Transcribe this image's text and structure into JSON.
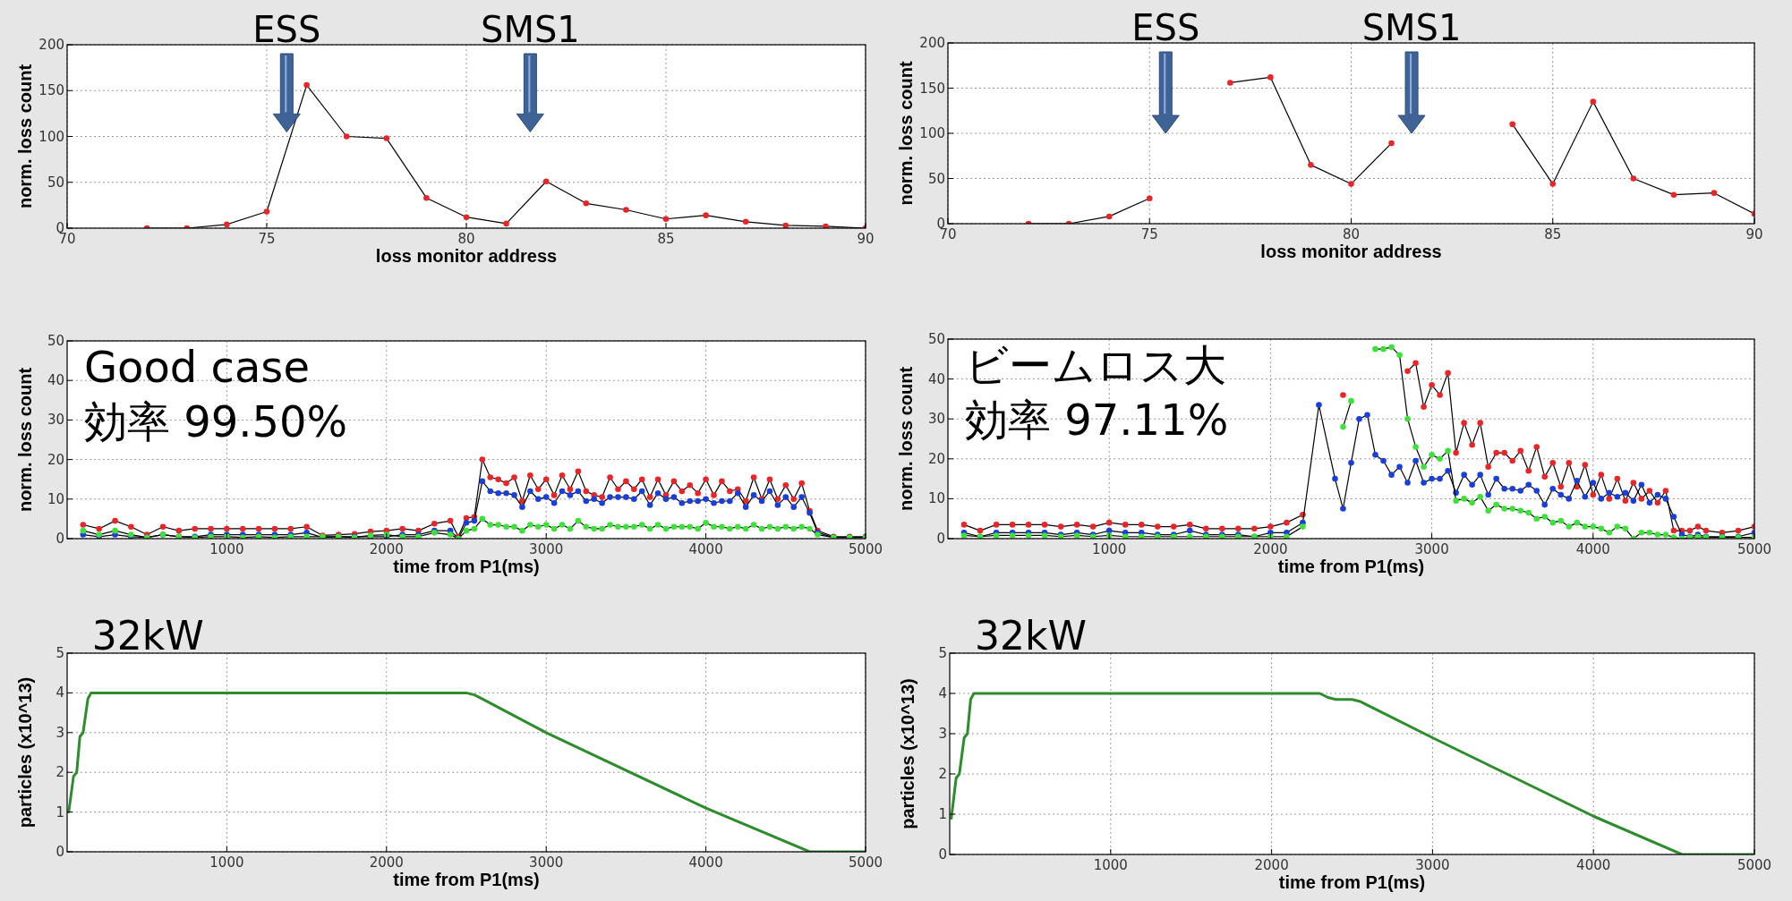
{
  "chart_data": [
    {
      "type": "line",
      "xlabel": "loss monitor address",
      "ylabel": "norm. loss count",
      "x": [
        72,
        73,
        74,
        75,
        76,
        77,
        78,
        79,
        80,
        81,
        82,
        83,
        84,
        85,
        86,
        87,
        88,
        89,
        90
      ],
      "series": [
        {
          "color": "#e8262a",
          "values": [
            0,
            0,
            4,
            18,
            156,
            100,
            98,
            33,
            12,
            5,
            51,
            27,
            20,
            10,
            14,
            7,
            3,
            2,
            0
          ]
        }
      ],
      "xlim": [
        70,
        90
      ],
      "xticks": [
        70,
        75,
        80,
        85,
        90
      ],
      "ylim": [
        0,
        200
      ],
      "yticks": [
        0,
        50,
        100,
        150,
        200
      ],
      "grid": true,
      "marker": "circle",
      "annotations": [
        "ESS",
        "SMS1"
      ]
    },
    {
      "type": "line",
      "xlabel": "loss monitor address",
      "ylabel": "norm. loss count",
      "x": [
        72,
        73,
        74,
        75,
        76,
        77,
        78,
        79,
        80,
        81,
        82,
        83,
        84,
        85,
        86,
        87,
        88,
        89,
        90
      ],
      "series": [
        {
          "color": "#e8262a",
          "values": [
            0,
            0,
            8,
            28,
            null,
            156,
            162,
            65,
            44,
            89,
            null,
            null,
            110,
            44,
            135,
            50,
            32,
            34,
            11
          ]
        }
      ],
      "xlim": [
        70,
        90
      ],
      "xticks": [
        70,
        75,
        80,
        85,
        90
      ],
      "ylim": [
        0,
        200
      ],
      "yticks": [
        0,
        50,
        100,
        150,
        200
      ],
      "grid": true,
      "marker": "circle",
      "annotations": [
        "ESS",
        "SMS1"
      ]
    },
    {
      "type": "line",
      "xlabel": "time from P1(ms)",
      "ylabel": "norm. loss count",
      "x": [
        100,
        200,
        300,
        400,
        500,
        600,
        700,
        800,
        900,
        1000,
        1100,
        1200,
        1300,
        1400,
        1500,
        1600,
        1700,
        1800,
        1900,
        2000,
        2100,
        2200,
        2300,
        2400,
        2450,
        2500,
        2550,
        2600,
        2650,
        2700,
        2750,
        2800,
        2850,
        2900,
        2950,
        3000,
        3050,
        3100,
        3150,
        3200,
        3250,
        3300,
        3350,
        3400,
        3450,
        3500,
        3550,
        3600,
        3650,
        3700,
        3750,
        3800,
        3850,
        3900,
        3950,
        4000,
        4050,
        4100,
        4150,
        4200,
        4250,
        4300,
        4350,
        4400,
        4450,
        4500,
        4550,
        4600,
        4650,
        4700,
        4800,
        4900,
        5000
      ],
      "series": [
        {
          "color": "#e8262a",
          "values": [
            3.5,
            2.5,
            4.5,
            3,
            1,
            3,
            2,
            2.5,
            2.5,
            2.5,
            2.5,
            2.5,
            2.5,
            2.5,
            3,
            0.8,
            1,
            1.2,
            1.8,
            2,
            2.5,
            2,
            3.8,
            4.5,
            0.5,
            5.2,
            5.5,
            20,
            15.5,
            15,
            14,
            15.5,
            9.5,
            16,
            12.5,
            15,
            11,
            16,
            12.5,
            17,
            12,
            11,
            10.5,
            15.5,
            12.5,
            14.5,
            12.5,
            15,
            10.5,
            15,
            11,
            14.5,
            12,
            13.5,
            11.5,
            15,
            11,
            14.5,
            12,
            12.5,
            9.5,
            15.5,
            10,
            15,
            10,
            13.5,
            10,
            14,
            7,
            2,
            0.5,
            0.5,
            0.5
          ]
        },
        {
          "color": "#1a3fd8",
          "values": [
            1,
            0.5,
            1,
            0.5,
            0.3,
            1,
            0.5,
            0.5,
            1,
            1,
            1,
            1,
            1,
            1,
            1.5,
            0.3,
            0.5,
            0.5,
            0.5,
            0.5,
            1,
            1,
            2,
            2,
            0,
            4,
            4.5,
            14.5,
            12,
            11.5,
            11.5,
            11,
            8,
            12,
            10,
            10.5,
            9,
            12,
            11,
            12,
            9.5,
            10,
            9,
            10.5,
            10.5,
            10.5,
            10,
            12,
            8.5,
            11.5,
            10,
            10.5,
            9,
            9.5,
            9.5,
            10,
            9,
            9.5,
            9.5,
            11.5,
            8,
            11,
            9.5,
            12,
            8.5,
            10.5,
            8,
            10.5,
            6.5,
            1.5,
            0.3,
            0.3,
            0.3
          ]
        },
        {
          "color": "#3ee03a",
          "values": [
            2,
            1,
            2,
            1,
            0.3,
            1,
            0.5,
            0.3,
            0.5,
            0.5,
            0.3,
            0.5,
            0.3,
            0.5,
            0.5,
            0.5,
            0.5,
            0.3,
            0.8,
            1,
            0.5,
            0.5,
            1.5,
            1,
            0,
            2,
            2.5,
            5,
            3.5,
            3.5,
            3,
            3,
            2,
            3.5,
            3,
            3.5,
            2.5,
            3.5,
            2.5,
            4.5,
            3,
            2.5,
            2.5,
            3.5,
            3,
            3,
            3,
            3.5,
            2.5,
            3.5,
            2.5,
            3,
            3,
            3,
            2.5,
            4,
            3,
            3,
            2.5,
            3,
            2.5,
            3.5,
            2.5,
            3,
            2.5,
            3,
            2.5,
            3,
            2.5,
            1,
            0.3,
            0.3,
            0.3
          ]
        }
      ],
      "xlim": [
        0,
        5000
      ],
      "xticks": [
        1000,
        2000,
        3000,
        4000,
        5000
      ],
      "ylim": [
        0,
        50
      ],
      "yticks": [
        0,
        10,
        20,
        30,
        40,
        50
      ],
      "grid": true,
      "marker": "circle",
      "annotations": [
        "Good case",
        "効率 99.50%"
      ]
    },
    {
      "type": "line",
      "xlabel": "time from P1(ms)",
      "ylabel": "norm. loss count",
      "x": [
        100,
        200,
        300,
        400,
        500,
        600,
        700,
        800,
        900,
        1000,
        1100,
        1200,
        1300,
        1400,
        1500,
        1600,
        1700,
        1800,
        1900,
        2000,
        2100,
        2200,
        2300,
        2400,
        2450,
        2500,
        2550,
        2600,
        2650,
        2700,
        2750,
        2800,
        2850,
        2900,
        2950,
        3000,
        3050,
        3100,
        3150,
        3200,
        3250,
        3300,
        3350,
        3400,
        3450,
        3500,
        3550,
        3600,
        3650,
        3700,
        3750,
        3800,
        3850,
        3900,
        3950,
        4000,
        4050,
        4100,
        4150,
        4200,
        4250,
        4300,
        4350,
        4400,
        4450,
        4500,
        4550,
        4600,
        4650,
        4700,
        4800,
        4900,
        5000
      ],
      "series": [
        {
          "color": "#e8262a",
          "values": [
            3.5,
            2,
            3.5,
            3.5,
            3.5,
            3.5,
            3,
            3.5,
            3,
            4,
            3.5,
            3.5,
            3,
            3,
            3.5,
            2.5,
            2.5,
            2.5,
            2.5,
            3,
            4,
            6,
            null,
            null,
            36,
            null,
            null,
            null,
            null,
            null,
            null,
            null,
            42,
            44,
            33,
            38.5,
            36,
            41.5,
            21.5,
            29,
            23.5,
            29,
            18,
            21.5,
            21.5,
            19.5,
            22,
            17,
            23,
            15.5,
            19,
            13,
            19,
            13,
            18.5,
            11,
            16,
            10,
            15,
            9.5,
            14,
            10,
            12,
            9,
            12,
            2,
            2,
            2,
            3,
            2,
            1.5,
            2,
            3
          ]
        },
        {
          "color": "#1a3fd8",
          "values": [
            1.5,
            0.5,
            1.5,
            1.5,
            1.5,
            1.5,
            1,
            1.5,
            1,
            2,
            1.5,
            1.5,
            1,
            1,
            2,
            1,
            1,
            1,
            0.5,
            1.5,
            1.5,
            4,
            33.5,
            15,
            7.5,
            19,
            30,
            31,
            21,
            19.5,
            16,
            18,
            14,
            19.5,
            14,
            15,
            15,
            17,
            11.5,
            16,
            13.5,
            16,
            11,
            15,
            12.5,
            12.5,
            12,
            13.5,
            12,
            8.5,
            12.5,
            11,
            10,
            14.5,
            10.5,
            14,
            10,
            11.5,
            10.5,
            11.5,
            9.5,
            13.5,
            9,
            11,
            10,
            5.5,
            1,
            0.5,
            1,
            0.5,
            0.5,
            0.5,
            1.5
          ]
        },
        {
          "color": "#3ee03a",
          "values": [
            0.8,
            0.5,
            0.8,
            0.8,
            0.8,
            0.8,
            0.5,
            0.8,
            0.5,
            0.8,
            0.5,
            0.5,
            0.5,
            0.5,
            0.5,
            0.5,
            0.5,
            0.5,
            0.5,
            0.5,
            0.5,
            3,
            null,
            null,
            28,
            34.5,
            null,
            null,
            47.5,
            47.5,
            48,
            46,
            30,
            23,
            18,
            21,
            20,
            22,
            9.5,
            10,
            9,
            10.5,
            7,
            8.5,
            7.5,
            7.5,
            7,
            6.5,
            5,
            5.5,
            4,
            4.5,
            3,
            4,
            3,
            3,
            2.5,
            1.5,
            3,
            2.5,
            0,
            1.5,
            1.5,
            1,
            1,
            0.3,
            0,
            0.3,
            0.5,
            0.3,
            0.3,
            0.3,
            0.3
          ]
        }
      ],
      "xlim": [
        0,
        5000
      ],
      "xticks": [
        1000,
        2000,
        3000,
        4000,
        5000
      ],
      "ylim": [
        0,
        50
      ],
      "yticks": [
        0,
        10,
        20,
        30,
        40,
        50
      ],
      "grid": true,
      "marker": "circle",
      "annotations": [
        "ビームロス大",
        "効率 97.11%"
      ]
    },
    {
      "type": "line",
      "xlabel": "time from P1(ms)",
      "ylabel": "particles (x10^13)",
      "x": [
        10,
        40,
        60,
        80,
        100,
        130,
        150,
        2500,
        2550,
        2600,
        3000,
        4000,
        4650,
        5000
      ],
      "series": [
        {
          "color": "#2e8b2e",
          "values": [
            1,
            1.9,
            2,
            2.9,
            3,
            3.85,
            4,
            4,
            3.95,
            3.85,
            3,
            1.1,
            0,
            0
          ]
        }
      ],
      "xlim": [
        0,
        5000
      ],
      "xticks": [
        1000,
        2000,
        3000,
        4000,
        5000
      ],
      "ylim": [
        0,
        5
      ],
      "yticks": [
        0,
        1,
        2,
        3,
        4,
        5
      ],
      "grid": true,
      "marker": "none",
      "annotations": [
        "32kW"
      ]
    },
    {
      "type": "line",
      "xlabel": "time from P1(ms)",
      "ylabel": "particles (x10^13)",
      "x": [
        10,
        40,
        60,
        90,
        110,
        130,
        150,
        2300,
        2350,
        2400,
        2500,
        2550,
        3000,
        4000,
        4550,
        5000
      ],
      "series": [
        {
          "color": "#2e8b2e",
          "values": [
            0.9,
            1.9,
            2,
            2.9,
            3,
            3.85,
            4,
            4,
            3.9,
            3.85,
            3.85,
            3.8,
            2.9,
            0.95,
            0,
            0
          ]
        }
      ],
      "xlim": [
        0,
        5000
      ],
      "xticks": [
        1000,
        2000,
        3000,
        4000,
        5000
      ],
      "ylim": [
        0,
        5
      ],
      "yticks": [
        0,
        1,
        2,
        3,
        4,
        5
      ],
      "grid": true,
      "marker": "none",
      "annotations": [
        "32kW"
      ]
    }
  ]
}
